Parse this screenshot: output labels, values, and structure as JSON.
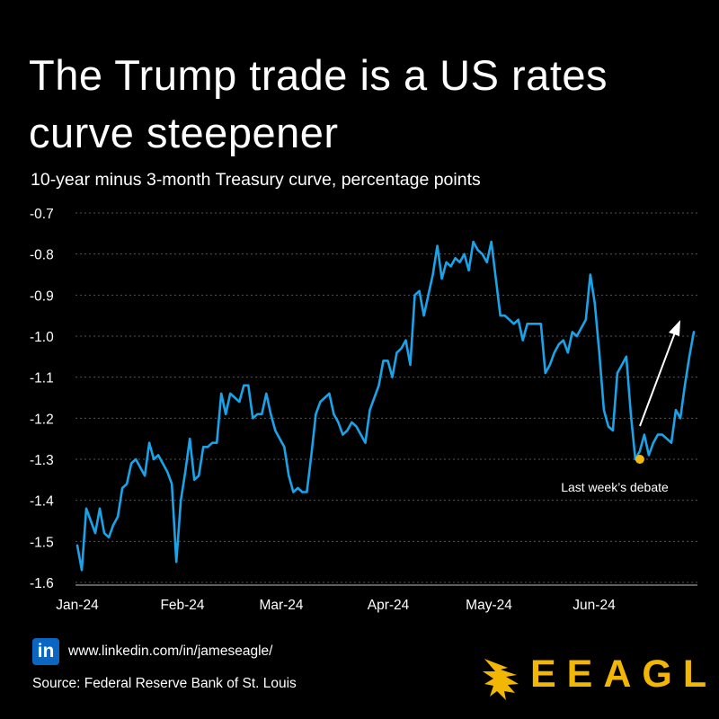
{
  "header": {
    "title": "The Trump trade is a US rates curve steepener",
    "subtitle": "10-year minus 3-month Treasury curve, percentage points"
  },
  "chart_data": {
    "type": "line",
    "title": "The Trump trade is a US rates curve steepener",
    "subtitle": "10-year minus 3-month Treasury curve, percentage points",
    "ylim": [
      -1.6,
      -0.7
    ],
    "yticks": [
      "-0.7",
      "-0.8",
      "-0.9",
      "-1.0",
      "-1.1",
      "-1.2",
      "-1.3",
      "-1.4",
      "-1.5",
      "-1.6"
    ],
    "xticks": [
      "Jan-24",
      "Feb-24",
      "Mar-24",
      "Apr-24",
      "May-24",
      "Jun-24"
    ],
    "grid": true,
    "line_color": "#1aa3e8",
    "series": [
      {
        "values": [
          -1.51,
          -1.57,
          -1.42,
          -1.45,
          -1.48,
          -1.42,
          -1.48,
          -1.49,
          -1.46,
          -1.44,
          -1.37,
          -1.36,
          -1.31,
          -1.3,
          -1.32,
          -1.34,
          -1.26,
          -1.3,
          -1.29,
          -1.31,
          -1.33,
          -1.36,
          -1.55,
          -1.4,
          -1.33,
          -1.25,
          -1.35,
          -1.34,
          -1.27,
          -1.27,
          -1.26,
          -1.26,
          -1.14,
          -1.19,
          -1.14,
          -1.15,
          -1.16,
          -1.12,
          -1.12,
          -1.2,
          -1.19,
          -1.19,
          -1.14,
          -1.19,
          -1.23,
          -1.25,
          -1.27,
          -1.34,
          -1.38,
          -1.37,
          -1.38,
          -1.38,
          -1.29,
          -1.19,
          -1.16,
          -1.15,
          -1.14,
          -1.19,
          -1.21,
          -1.24,
          -1.23,
          -1.21,
          -1.22,
          -1.24,
          -1.26,
          -1.18,
          -1.15,
          -1.12,
          -1.06,
          -1.06,
          -1.1,
          -1.04,
          -1.03,
          -1.01,
          -1.07,
          -0.9,
          -0.89,
          -0.95,
          -0.9,
          -0.85,
          -0.78,
          -0.86,
          -0.82,
          -0.83,
          -0.81,
          -0.82,
          -0.8,
          -0.84,
          -0.77,
          -0.79,
          -0.8,
          -0.82,
          -0.77,
          -0.86,
          -0.95,
          -0.95,
          -0.96,
          -0.97,
          -0.96,
          -1.01,
          -0.97,
          -0.97,
          -0.97,
          -0.97,
          -1.09,
          -1.07,
          -1.04,
          -1.02,
          -1.01,
          -1.04,
          -0.99,
          -1.0,
          -0.98,
          -0.96,
          -0.85,
          -0.92,
          -1.04,
          -1.18,
          -1.22,
          -1.23,
          -1.09,
          -1.07,
          -1.05,
          -1.19,
          -1.3,
          -1.28,
          -1.24,
          -1.29,
          -1.26,
          -1.24,
          -1.24,
          -1.25,
          -1.26,
          -1.18,
          -1.2,
          -1.12,
          -1.05,
          -0.99
        ]
      }
    ],
    "annotations": [
      {
        "text": "Last week’s debate",
        "x_index": 125,
        "y": -1.3,
        "marker_color": "#f5b80c"
      }
    ]
  },
  "footer": {
    "linkedin_icon": "in",
    "url": "www.linkedin.com/in/jameseagle/",
    "source": "Source: Federal Reserve Bank of St. Louis",
    "logo_icon": "eagle-logo-icon",
    "brand": "EEAGLI",
    "brand_color": "#f2b705"
  }
}
